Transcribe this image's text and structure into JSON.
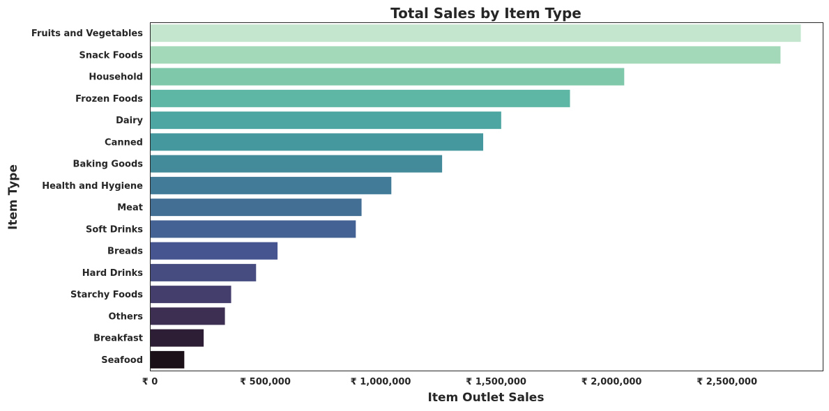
{
  "chart_data": {
    "type": "bar",
    "orientation": "horizontal",
    "title": "Total Sales by Item Type",
    "xlabel": "Item Outlet Sales",
    "ylabel": "Item Type",
    "xlim": [
      0,
      2915000
    ],
    "xticks": [
      0,
      500000,
      1000000,
      1500000,
      2000000,
      2500000
    ],
    "xtick_labels": [
      "₹ 0",
      "₹ 500,000",
      "₹ 1,000,000",
      "₹ 1,500,000",
      "₹ 2,000,000",
      "₹ 2,500,000"
    ],
    "grid": false,
    "categories": [
      "Fruits and Vegetables",
      "Snack Foods",
      "Household",
      "Frozen Foods",
      "Dairy",
      "Canned",
      "Baking Goods",
      "Health and Hygiene",
      "Meat",
      "Soft Drinks",
      "Breads",
      "Hard Drinks",
      "Starchy Foods",
      "Others",
      "Breakfast",
      "Seafood"
    ],
    "values": [
      2820000,
      2732000,
      2055000,
      1820000,
      1522000,
      1444000,
      1266000,
      1046000,
      917000,
      892000,
      553000,
      460000,
      352000,
      325000,
      233000,
      149000
    ],
    "colors": [
      "#c4e6cf",
      "#a3d8b8",
      "#7fc9aa",
      "#5db7a4",
      "#4ea6a2",
      "#45989e",
      "#438a9a",
      "#417b97",
      "#436f94",
      "#446394",
      "#465490",
      "#464b80",
      "#433e6c",
      "#3d2f52",
      "#2d1e35",
      "#1c1018"
    ]
  }
}
